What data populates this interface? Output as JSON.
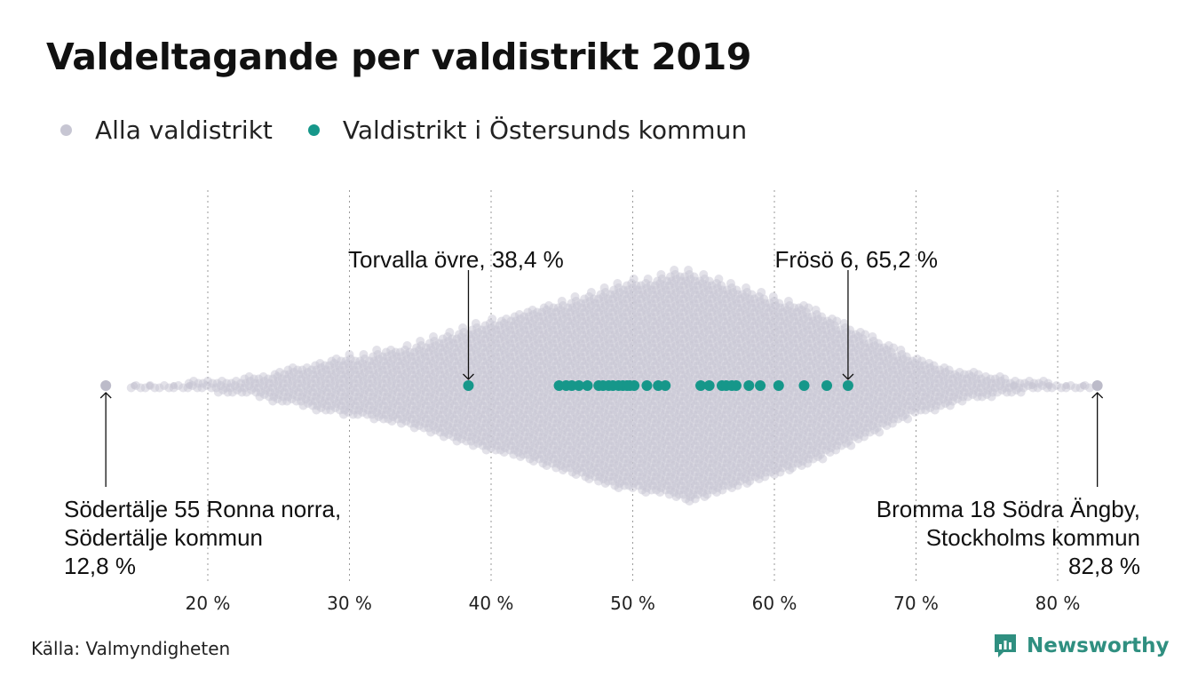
{
  "title": "Valdeltagande per valdistrikt 2019",
  "legend": [
    {
      "label": "Alla valdistrikt",
      "color": "#c7c6d3"
    },
    {
      "label": "Valdistrikt i Östersunds kommun",
      "color": "#16978a"
    }
  ],
  "source": "Källa: Valmyndigheten",
  "brand": {
    "name": "Newsworthy",
    "logo_icon": "newsworthy-logo-icon",
    "color": "#2f8f80"
  },
  "chart_data": {
    "type": "scatter",
    "subtype": "beeswarm",
    "xlim": [
      12,
      84
    ],
    "x_ticks": [
      20,
      30,
      40,
      50,
      60,
      70,
      80
    ],
    "x_tick_labels": [
      "20 %",
      "30 %",
      "40 %",
      "50 %",
      "60 %",
      "70 %",
      "80 %"
    ],
    "grid": "vertical dotted",
    "colors": {
      "all": "#c7c6d3",
      "highlight": "#16978a"
    },
    "series": [
      {
        "name": "Alla valdistrikt",
        "distribution": {
          "min": 12.8,
          "max": 82.8,
          "peak": 53.8,
          "stacks_per_percent": [
            [
              15,
              1
            ],
            [
              16,
              1
            ],
            [
              17,
              1
            ],
            [
              18,
              1
            ],
            [
              19,
              2
            ],
            [
              20,
              2
            ],
            [
              21,
              3
            ],
            [
              22,
              3
            ],
            [
              23,
              4
            ],
            [
              24,
              5
            ],
            [
              25,
              7
            ],
            [
              26,
              8
            ],
            [
              27,
              9
            ],
            [
              28,
              11
            ],
            [
              29,
              12
            ],
            [
              30,
              14
            ],
            [
              31,
              14
            ],
            [
              32,
              16
            ],
            [
              33,
              17
            ],
            [
              34,
              18
            ],
            [
              35,
              20
            ],
            [
              36,
              22
            ],
            [
              37,
              24
            ],
            [
              38,
              26
            ],
            [
              39,
              28
            ],
            [
              40,
              30
            ],
            [
              41,
              31
            ],
            [
              42,
              33
            ],
            [
              43,
              35
            ],
            [
              44,
              37
            ],
            [
              45,
              39
            ],
            [
              46,
              41
            ],
            [
              47,
              43
            ],
            [
              48,
              45
            ],
            [
              49,
              47
            ],
            [
              50,
              48
            ],
            [
              51,
              49
            ],
            [
              52,
              50
            ],
            [
              53,
              52
            ],
            [
              54,
              53
            ],
            [
              55,
              51
            ],
            [
              56,
              49
            ],
            [
              57,
              47
            ],
            [
              58,
              45
            ],
            [
              59,
              43
            ],
            [
              60,
              41
            ],
            [
              61,
              39
            ],
            [
              62,
              37
            ],
            [
              63,
              34
            ],
            [
              64,
              31
            ],
            [
              65,
              28
            ],
            [
              66,
              25
            ],
            [
              67,
              22
            ],
            [
              68,
              19
            ],
            [
              69,
              16
            ],
            [
              70,
              13
            ],
            [
              71,
              11
            ],
            [
              72,
              9
            ],
            [
              73,
              7
            ],
            [
              74,
              6
            ],
            [
              75,
              5
            ],
            [
              76,
              4
            ],
            [
              77,
              3
            ],
            [
              78,
              2
            ],
            [
              79,
              2
            ],
            [
              80,
              1
            ],
            [
              81,
              1
            ],
            [
              82,
              1
            ]
          ]
        }
      },
      {
        "name": "Valdistrikt i Östersunds kommun",
        "values": [
          38.4,
          44.8,
          45.3,
          45.7,
          46.2,
          46.8,
          47.6,
          47.9,
          48.3,
          48.6,
          49.0,
          49.3,
          49.6,
          49.8,
          50.1,
          51.0,
          51.8,
          52.3,
          54.8,
          55.4,
          56.3,
          56.6,
          57.0,
          57.3,
          58.2,
          59.0,
          60.3,
          62.1,
          63.7,
          65.2
        ]
      }
    ],
    "annotations": [
      {
        "lines": [
          "Torvalla övre, 38,4 %"
        ],
        "x": 38.4,
        "align": "left"
      },
      {
        "lines": [
          "Frösö 6, 65,2 %"
        ],
        "x": 65.2,
        "align": "right"
      },
      {
        "lines": [
          "Södertälje 55 Ronna norra,",
          "Södertälje kommun",
          "12,8 %"
        ],
        "x": 12.8,
        "align": "left"
      },
      {
        "lines": [
          "Bromma 18 Södra Ängby,",
          "Stockholms kommun",
          "82,8 %"
        ],
        "x": 82.8,
        "align": "right"
      }
    ]
  }
}
